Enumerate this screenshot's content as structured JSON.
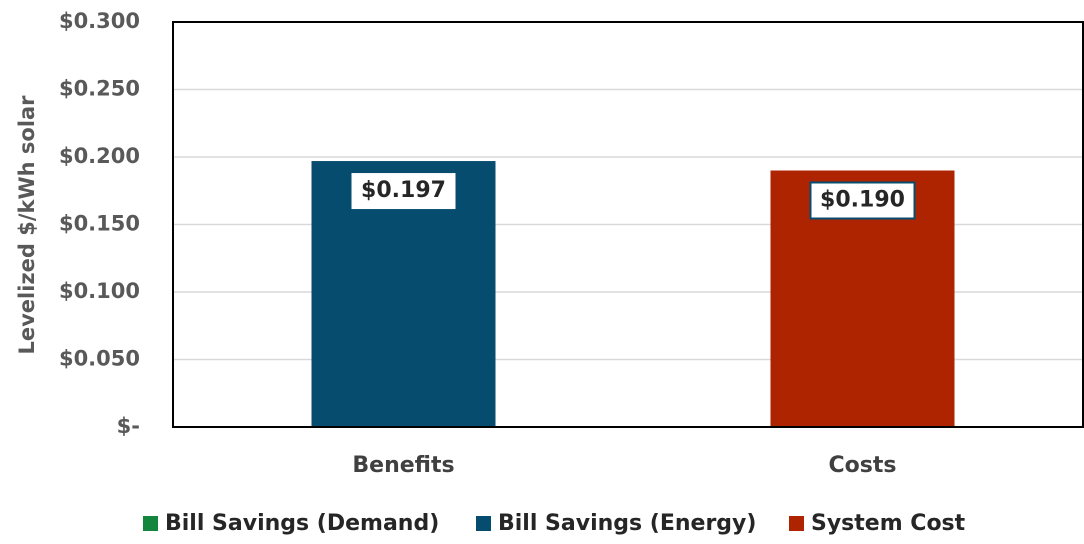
{
  "chart_data": {
    "type": "stacked_bar",
    "ylabel": "Levelized $/kWh solar",
    "categories": [
      "Benefits",
      "Costs"
    ],
    "series": [
      {
        "name": "Bill Savings (Demand)",
        "color": "#13853c",
        "values": [
          0,
          null
        ]
      },
      {
        "name": "Bill Savings (Energy)",
        "color": "#054c6e",
        "values": [
          0.197,
          null
        ],
        "value_labels": [
          "$0.197",
          null
        ]
      },
      {
        "name": "System Cost",
        "color": "#ae2300",
        "values": [
          null,
          0.19
        ],
        "value_labels": [
          null,
          "$0.190"
        ]
      }
    ],
    "ylim": [
      0,
      0.3
    ],
    "yticks": [
      {
        "value": 0,
        "label": "$-"
      },
      {
        "value": 0.05,
        "label": "$0.050"
      },
      {
        "value": 0.1,
        "label": "$0.100"
      },
      {
        "value": 0.15,
        "label": "$0.150"
      },
      {
        "value": 0.2,
        "label": "$0.200"
      },
      {
        "value": 0.25,
        "label": "$0.250"
      },
      {
        "value": 0.3,
        "label": "$0.300"
      }
    ],
    "grid": true,
    "legend": "bottom"
  }
}
